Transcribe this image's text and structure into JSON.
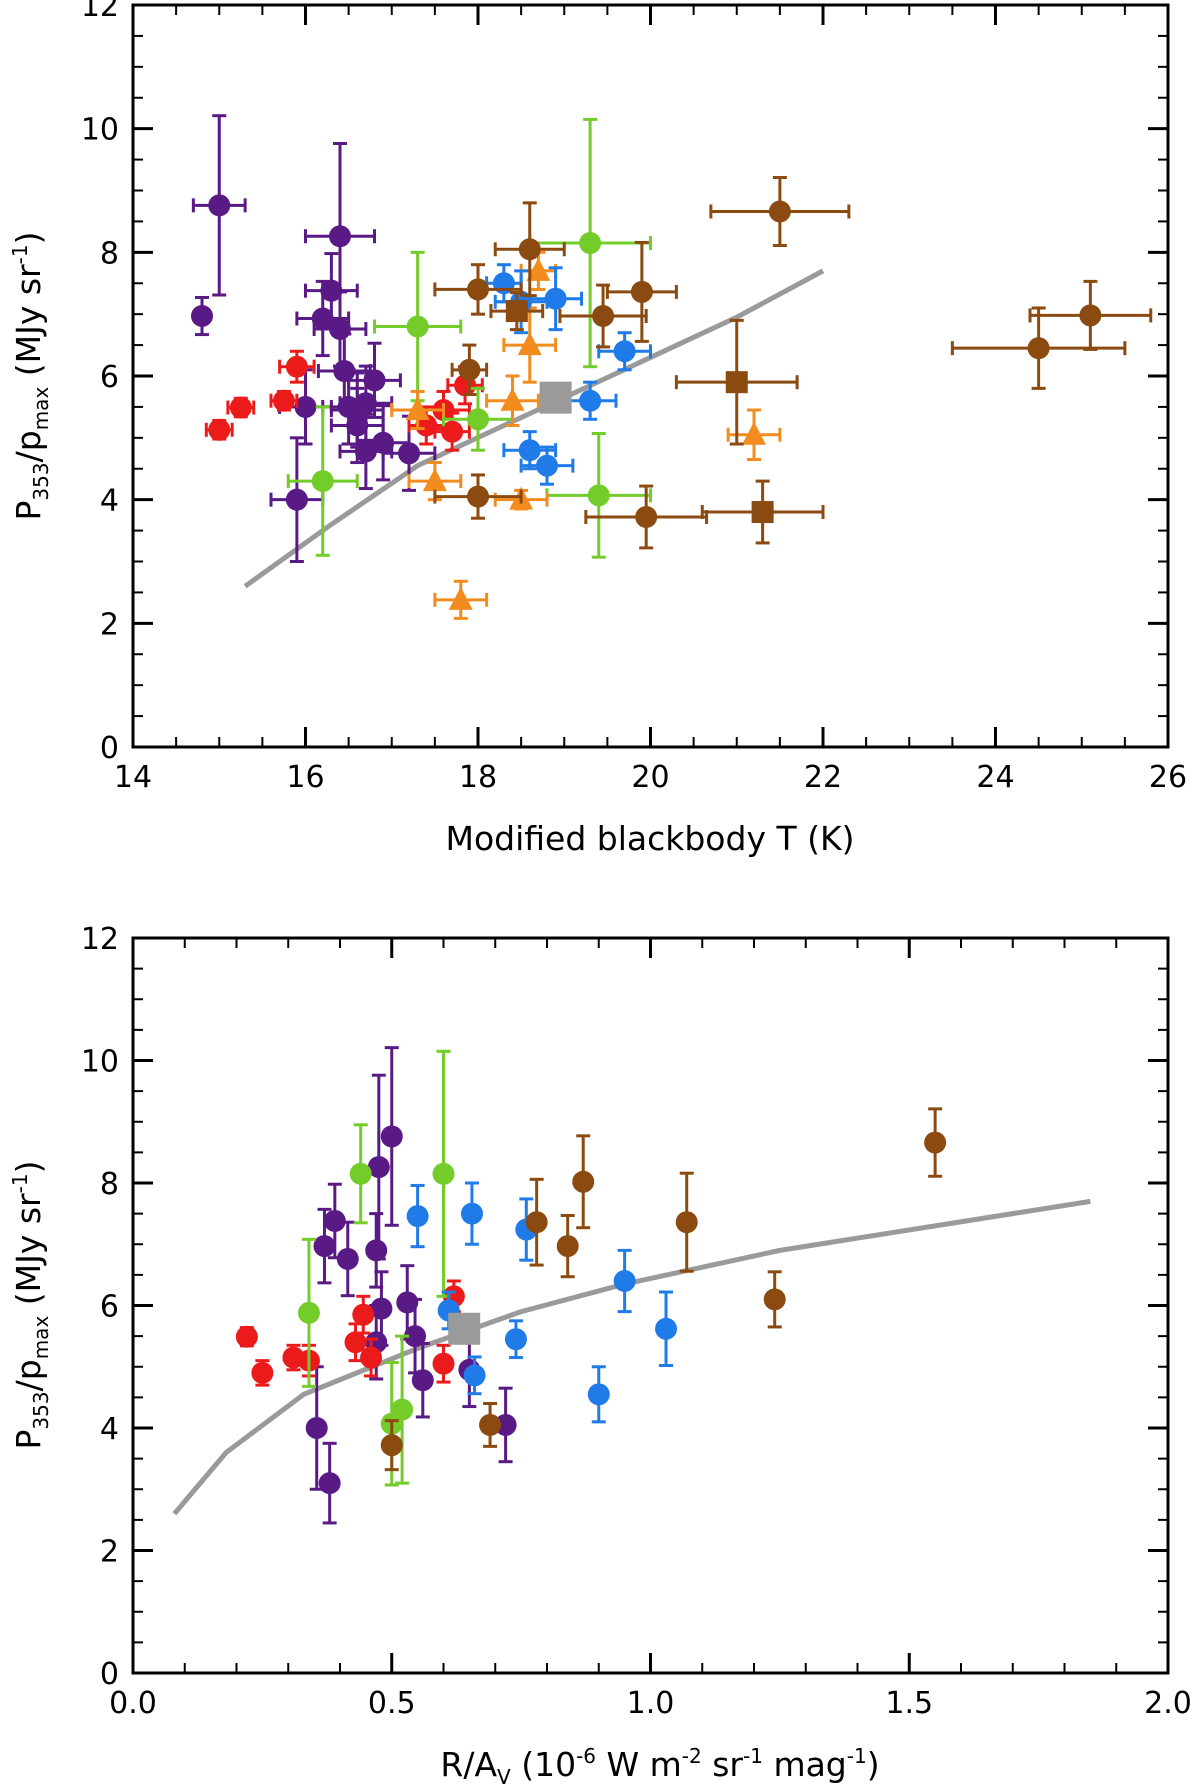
{
  "colors": {
    "purple": "#5a1a86",
    "red": "#ec1b1b",
    "green": "#74cc2a",
    "orange": "#f28c1e",
    "blue": "#1f7be8",
    "brown": "#8b4a10",
    "model": "#9a9a9a"
  },
  "chart_data": [
    {
      "type": "scatter",
      "xlabel": "Modified blackbody T (K)",
      "ylabel": {
        "p": "P",
        "sub1": "353",
        "slash": "/p",
        "sub2": "max",
        "unit_open": " (MJy sr",
        "sup": "-1",
        "unit_close": ")"
      },
      "xlim": [
        14,
        26
      ],
      "ylim": [
        0,
        12
      ],
      "xticks": [
        "14",
        "16",
        "18",
        "20",
        "22",
        "24",
        "26"
      ],
      "yticks": [
        "0",
        "2",
        "4",
        "6",
        "8",
        "10",
        "12"
      ],
      "series": [
        {
          "name": "purple",
          "color": "purple",
          "marker": "circle",
          "points": [
            {
              "x": 14.8,
              "y": 6.97,
              "xe": 0,
              "ye": 0.3
            },
            {
              "x": 15.0,
              "y": 8.76,
              "xe": 0.3,
              "ye": 1.45
            },
            {
              "x": 15.9,
              "y": 4.0,
              "xe": 0.3,
              "ye": 1.0
            },
            {
              "x": 16.0,
              "y": 5.5,
              "xe": 0.3,
              "ye": 0.6
            },
            {
              "x": 16.2,
              "y": 6.93,
              "xe": 0.3,
              "ye": 0.6
            },
            {
              "x": 16.3,
              "y": 7.38,
              "xe": 0.3,
              "ye": 0.6
            },
            {
              "x": 16.4,
              "y": 8.26,
              "xe": 0.4,
              "ye": 1.5
            },
            {
              "x": 16.4,
              "y": 6.76,
              "xe": 0.3,
              "ye": 0.6
            },
            {
              "x": 16.45,
              "y": 6.08,
              "xe": 0.3,
              "ye": 0.6
            },
            {
              "x": 16.5,
              "y": 5.5,
              "xe": 0.3,
              "ye": 0.6
            },
            {
              "x": 16.6,
              "y": 5.45,
              "xe": 0.3,
              "ye": 0.6
            },
            {
              "x": 16.6,
              "y": 5.2,
              "xe": 0.3,
              "ye": 0.6
            },
            {
              "x": 16.7,
              "y": 5.56,
              "xe": 0.3,
              "ye": 0.6
            },
            {
              "x": 16.7,
              "y": 4.78,
              "xe": 0.3,
              "ye": 0.6
            },
            {
              "x": 16.8,
              "y": 5.93,
              "xe": 0.3,
              "ye": 0.6
            },
            {
              "x": 16.9,
              "y": 4.92,
              "xe": 0.3,
              "ye": 0.6
            },
            {
              "x": 17.2,
              "y": 4.75,
              "xe": 0.3,
              "ye": 0.6
            }
          ]
        },
        {
          "name": "red",
          "color": "red",
          "marker": "circle",
          "points": [
            {
              "x": 15.0,
              "y": 5.13,
              "xe": 0.15,
              "ye": 0.15
            },
            {
              "x": 15.25,
              "y": 5.49,
              "xe": 0.15,
              "ye": 0.15
            },
            {
              "x": 15.75,
              "y": 5.6,
              "xe": 0.15,
              "ye": 0.15
            },
            {
              "x": 15.9,
              "y": 6.15,
              "xe": 0.2,
              "ye": 0.25
            },
            {
              "x": 17.4,
              "y": 5.2,
              "xe": 0.2,
              "ye": 0.3
            },
            {
              "x": 17.6,
              "y": 5.45,
              "xe": 0.3,
              "ye": 0.3
            },
            {
              "x": 17.7,
              "y": 5.1,
              "xe": 0.2,
              "ye": 0.3
            },
            {
              "x": 17.85,
              "y": 5.85,
              "xe": 0.2,
              "ye": 0.3
            }
          ]
        },
        {
          "name": "green",
          "color": "green",
          "marker": "circle",
          "points": [
            {
              "x": 16.2,
              "y": 4.3,
              "xe": 0.4,
              "ye": 1.2
            },
            {
              "x": 17.3,
              "y": 6.8,
              "xe": 0.5,
              "ye": 1.2
            },
            {
              "x": 18.0,
              "y": 5.3,
              "xe": 0.4,
              "ye": 0.5
            },
            {
              "x": 19.3,
              "y": 8.15,
              "xe": 0.7,
              "ye": 2.0
            },
            {
              "x": 19.4,
              "y": 4.07,
              "xe": 0.6,
              "ye": 1.0
            }
          ]
        },
        {
          "name": "orange",
          "color": "orange",
          "marker": "triangle",
          "points": [
            {
              "x": 17.3,
              "y": 5.45,
              "xe": 0.3,
              "ye": 0.3
            },
            {
              "x": 17.5,
              "y": 4.3,
              "xe": 0.3,
              "ye": 0.3
            },
            {
              "x": 17.8,
              "y": 2.38,
              "xe": 0.3,
              "ye": 0.3
            },
            {
              "x": 18.4,
              "y": 5.6,
              "xe": 0.3,
              "ye": 0.4
            },
            {
              "x": 18.5,
              "y": 4.0,
              "xe": 0.3,
              "ye": 0.15
            },
            {
              "x": 18.6,
              "y": 6.5,
              "xe": 0.3,
              "ye": 0.6
            },
            {
              "x": 18.7,
              "y": 7.7,
              "xe": 0.2,
              "ye": 0.3
            },
            {
              "x": 21.2,
              "y": 5.05,
              "xe": 0.3,
              "ye": 0.4
            }
          ]
        },
        {
          "name": "blue",
          "color": "blue",
          "marker": "circle",
          "points": [
            {
              "x": 18.3,
              "y": 7.5,
              "xe": 0.2,
              "ye": 0.3
            },
            {
              "x": 18.5,
              "y": 7.2,
              "xe": 0.3,
              "ye": 0.5
            },
            {
              "x": 18.6,
              "y": 4.8,
              "xe": 0.3,
              "ye": 0.3
            },
            {
              "x": 18.8,
              "y": 4.55,
              "xe": 0.3,
              "ye": 0.3
            },
            {
              "x": 18.9,
              "y": 7.25,
              "xe": 0.3,
              "ye": 0.5
            },
            {
              "x": 19.3,
              "y": 5.6,
              "xe": 0.3,
              "ye": 0.3
            },
            {
              "x": 19.7,
              "y": 6.4,
              "xe": 0.3,
              "ye": 0.3
            }
          ]
        },
        {
          "name": "brown-circle",
          "color": "brown",
          "marker": "circle",
          "points": [
            {
              "x": 18.0,
              "y": 7.4,
              "xe": 0.5,
              "ye": 0.4
            },
            {
              "x": 18.0,
              "y": 4.05,
              "xe": 0.5,
              "ye": 0.35
            },
            {
              "x": 17.9,
              "y": 6.1,
              "xe": 0.2,
              "ye": 0.4
            },
            {
              "x": 18.6,
              "y": 8.05,
              "xe": 0.4,
              "ye": 0.75
            },
            {
              "x": 19.45,
              "y": 6.97,
              "xe": 0.5,
              "ye": 0.5
            },
            {
              "x": 19.9,
              "y": 7.36,
              "xe": 0.4,
              "ye": 0.8
            },
            {
              "x": 19.95,
              "y": 3.72,
              "xe": 0.7,
              "ye": 0.5
            },
            {
              "x": 21.5,
              "y": 8.66,
              "xe": 0.8,
              "ye": 0.55
            },
            {
              "x": 24.5,
              "y": 6.45,
              "xe": 1.0,
              "ye": 0.65
            },
            {
              "x": 25.1,
              "y": 6.98,
              "xe": 0.7,
              "ye": 0.55
            }
          ]
        },
        {
          "name": "brown-square",
          "color": "brown",
          "marker": "square",
          "points": [
            {
              "x": 18.45,
              "y": 7.05,
              "xe": 0.3,
              "ye": 0.3
            },
            {
              "x": 21.0,
              "y": 5.9,
              "xe": 0.7,
              "ye": 1.0
            },
            {
              "x": 21.3,
              "y": 3.8,
              "xe": 0.7,
              "ye": 0.5
            }
          ]
        }
      ],
      "model_line": {
        "x": [
          15.3,
          16.3,
          17.3,
          18.3,
          19.0,
          20.0,
          21.0,
          22.0
        ],
        "y": [
          2.6,
          3.6,
          4.55,
          5.2,
          5.65,
          6.3,
          6.95,
          7.7
        ]
      },
      "model_marker": {
        "x": 18.9,
        "y": 5.65
      }
    },
    {
      "type": "scatter",
      "xlabel": {
        "r": "R/A",
        "sub": "V",
        "unit_open": " (10",
        "sup1": "-6",
        "w": " W m",
        "sup2": "-2",
        "sr": " sr",
        "sup3": "-1",
        "mag": " mag",
        "sup4": "-1",
        "close": ")"
      },
      "ylabel": {
        "p": "P",
        "sub1": "353",
        "slash": "/p",
        "sub2": "max",
        "unit_open": " (MJy sr",
        "sup": "-1",
        "unit_close": ")"
      },
      "xlim": [
        0,
        2.0
      ],
      "ylim": [
        0,
        12
      ],
      "xticks": [
        "0.0",
        "0.5",
        "1.0",
        "1.5",
        "2.0"
      ],
      "yticks": [
        "0",
        "2",
        "4",
        "6",
        "8",
        "10",
        "12"
      ],
      "series": [
        {
          "name": "purple",
          "color": "purple",
          "marker": "circle",
          "points": [
            {
              "x": 0.355,
              "y": 4.0,
              "xe": 0,
              "ye": 1.0
            },
            {
              "x": 0.37,
              "y": 6.97,
              "xe": 0,
              "ye": 0.6
            },
            {
              "x": 0.38,
              "y": 3.1,
              "xe": 0,
              "ye": 0.65
            },
            {
              "x": 0.39,
              "y": 7.38,
              "xe": 0,
              "ye": 0.6
            },
            {
              "x": 0.415,
              "y": 6.76,
              "xe": 0,
              "ye": 0.6
            },
            {
              "x": 0.47,
              "y": 6.9,
              "xe": 0,
              "ye": 0.6
            },
            {
              "x": 0.475,
              "y": 8.26,
              "xe": 0,
              "ye": 1.5
            },
            {
              "x": 0.5,
              "y": 8.76,
              "xe": 0,
              "ye": 1.45
            },
            {
              "x": 0.48,
              "y": 5.95,
              "xe": 0,
              "ye": 0.6
            },
            {
              "x": 0.47,
              "y": 5.4,
              "xe": 0,
              "ye": 0.6
            },
            {
              "x": 0.53,
              "y": 6.05,
              "xe": 0,
              "ye": 0.6
            },
            {
              "x": 0.545,
              "y": 5.5,
              "xe": 0,
              "ye": 0.6
            },
            {
              "x": 0.56,
              "y": 4.78,
              "xe": 0,
              "ye": 0.6
            },
            {
              "x": 0.65,
              "y": 4.95,
              "xe": 0,
              "ye": 0.6
            },
            {
              "x": 0.72,
              "y": 4.05,
              "xe": 0,
              "ye": 0.6
            }
          ]
        },
        {
          "name": "red",
          "color": "red",
          "marker": "circle",
          "points": [
            {
              "x": 0.22,
              "y": 5.49,
              "xe": 0,
              "ye": 0.15
            },
            {
              "x": 0.25,
              "y": 4.9,
              "xe": 0,
              "ye": 0.2
            },
            {
              "x": 0.31,
              "y": 5.15,
              "xe": 0,
              "ye": 0.2
            },
            {
              "x": 0.34,
              "y": 5.1,
              "xe": 0,
              "ye": 0.25
            },
            {
              "x": 0.43,
              "y": 5.4,
              "xe": 0,
              "ye": 0.3
            },
            {
              "x": 0.445,
              "y": 5.85,
              "xe": 0,
              "ye": 0.3
            },
            {
              "x": 0.46,
              "y": 5.15,
              "xe": 0,
              "ye": 0.3
            },
            {
              "x": 0.6,
              "y": 5.05,
              "xe": 0,
              "ye": 0.3
            },
            {
              "x": 0.62,
              "y": 6.15,
              "xe": 0,
              "ye": 0.25
            }
          ]
        },
        {
          "name": "green",
          "color": "green",
          "marker": "circle",
          "points": [
            {
              "x": 0.34,
              "y": 5.88,
              "xe": 0,
              "ye": 1.2
            },
            {
              "x": 0.44,
              "y": 8.15,
              "xe": 0,
              "ye": 0.8
            },
            {
              "x": 0.5,
              "y": 4.07,
              "xe": 0,
              "ye": 1.0
            },
            {
              "x": 0.52,
              "y": 4.3,
              "xe": 0,
              "ye": 1.2
            },
            {
              "x": 0.6,
              "y": 8.15,
              "xe": 0,
              "ye": 2.0
            }
          ]
        },
        {
          "name": "blue",
          "color": "blue",
          "marker": "circle",
          "points": [
            {
              "x": 0.55,
              "y": 7.46,
              "xe": 0,
              "ye": 0.5
            },
            {
              "x": 0.61,
              "y": 5.92,
              "xe": 0,
              "ye": 0.3
            },
            {
              "x": 0.655,
              "y": 7.5,
              "xe": 0,
              "ye": 0.5
            },
            {
              "x": 0.66,
              "y": 4.86,
              "xe": 0,
              "ye": 0.3
            },
            {
              "x": 0.74,
              "y": 5.45,
              "xe": 0,
              "ye": 0.3
            },
            {
              "x": 0.76,
              "y": 7.24,
              "xe": 0,
              "ye": 0.5
            },
            {
              "x": 0.9,
              "y": 4.55,
              "xe": 0,
              "ye": 0.45
            },
            {
              "x": 0.95,
              "y": 6.4,
              "xe": 0,
              "ye": 0.5
            },
            {
              "x": 1.03,
              "y": 5.62,
              "xe": 0,
              "ye": 0.6
            }
          ]
        },
        {
          "name": "brown",
          "color": "brown",
          "marker": "circle",
          "points": [
            {
              "x": 0.5,
              "y": 3.72,
              "xe": 0,
              "ye": 0.4
            },
            {
              "x": 0.69,
              "y": 4.05,
              "xe": 0,
              "ye": 0.35
            },
            {
              "x": 0.78,
              "y": 7.36,
              "xe": 0,
              "ye": 0.7
            },
            {
              "x": 0.84,
              "y": 6.97,
              "xe": 0,
              "ye": 0.5
            },
            {
              "x": 0.87,
              "y": 8.02,
              "xe": 0,
              "ye": 0.75
            },
            {
              "x": 1.07,
              "y": 7.36,
              "xe": 0,
              "ye": 0.8
            },
            {
              "x": 1.24,
              "y": 6.1,
              "xe": 0,
              "ye": 0.45
            },
            {
              "x": 1.55,
              "y": 8.66,
              "xe": 0,
              "ye": 0.55
            }
          ]
        }
      ],
      "model_line": {
        "x": [
          0.08,
          0.18,
          0.33,
          0.55,
          0.75,
          0.95,
          1.25,
          1.55,
          1.85
        ],
        "y": [
          2.6,
          3.6,
          4.55,
          5.3,
          5.9,
          6.35,
          6.9,
          7.3,
          7.7
        ]
      },
      "model_marker": {
        "x": 0.64,
        "y": 5.62
      }
    }
  ]
}
